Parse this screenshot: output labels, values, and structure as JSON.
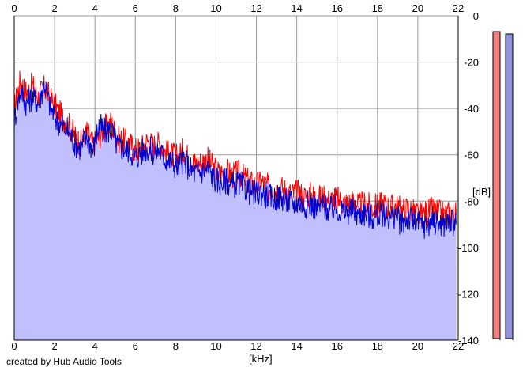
{
  "credit": "created by Hub Audio Tools",
  "meter_labels": {
    "left": "",
    "right": ""
  },
  "chart_data": {
    "type": "area",
    "title": "",
    "xlabel": "[kHz]",
    "ylabel": "[dB]",
    "x_ticks": [
      "0",
      "2",
      "4",
      "6",
      "8",
      "10",
      "12",
      "14",
      "16",
      "18",
      "20",
      "22"
    ],
    "y_ticks": [
      "0",
      "-20",
      "-40",
      "-60",
      "-80",
      "-100",
      "-120",
      "-140"
    ],
    "xlim": [
      0,
      22
    ],
    "ylim": [
      -140,
      0
    ],
    "grid": true,
    "colors": {
      "red_series": "#ff0000",
      "blue_series": "#0000cc",
      "fill": "#c0c0ff",
      "grid": "#9a9a9a",
      "axis": "#000000",
      "meter_red": "#f28080",
      "meter_blue": "#9090e0"
    },
    "series": [
      {
        "color": "red",
        "x": [
          0.0,
          0.3,
          0.6,
          0.9,
          1.2,
          1.5,
          1.8,
          2.1,
          2.4,
          2.7,
          3.0,
          3.3,
          3.6,
          3.9,
          4.2,
          4.5,
          4.8,
          5.1,
          5.4,
          5.7,
          6.0,
          6.3,
          6.6,
          6.9,
          7.2,
          7.5,
          7.8,
          8.1,
          8.4,
          8.7,
          9.0,
          9.3,
          9.6,
          9.9,
          10.2,
          10.5,
          10.8,
          11.1,
          11.4,
          11.7,
          12.0,
          12.3,
          12.6,
          12.9,
          13.2,
          13.5,
          13.8,
          14.1,
          14.4,
          14.7,
          15.0,
          15.3,
          15.6,
          15.9,
          16.2,
          16.5,
          16.8,
          17.1,
          17.4,
          17.7,
          18.0,
          18.3,
          18.6,
          18.9,
          19.2,
          19.5,
          19.8,
          20.1,
          20.4,
          20.7,
          21.0,
          21.3,
          21.6,
          21.9
        ],
        "y": [
          -40,
          -28,
          -33,
          -30,
          -35,
          -31,
          -36,
          -40,
          -44,
          -47,
          -52,
          -55,
          -50,
          -56,
          -52,
          -48,
          -46,
          -53,
          -54,
          -55,
          -58,
          -57,
          -54,
          -56,
          -55,
          -59,
          -60,
          -61,
          -58,
          -62,
          -64,
          -63,
          -62,
          -66,
          -68,
          -67,
          -69,
          -68,
          -70,
          -72,
          -73,
          -72,
          -74,
          -75,
          -74,
          -76,
          -77,
          -76,
          -78,
          -77,
          -79,
          -78,
          -80,
          -79,
          -80,
          -81,
          -80,
          -82,
          -81,
          -83,
          -82,
          -81,
          -83,
          -82,
          -84,
          -83,
          -85,
          -86,
          -85,
          -84,
          -85,
          -86,
          -85,
          -86
        ]
      },
      {
        "color": "blue",
        "x": [
          0.0,
          0.3,
          0.6,
          0.9,
          1.2,
          1.5,
          1.8,
          2.1,
          2.4,
          2.7,
          3.0,
          3.3,
          3.6,
          3.9,
          4.2,
          4.5,
          4.8,
          5.1,
          5.4,
          5.7,
          6.0,
          6.3,
          6.6,
          6.9,
          7.2,
          7.5,
          7.8,
          8.1,
          8.4,
          8.7,
          9.0,
          9.3,
          9.6,
          9.9,
          10.2,
          10.5,
          10.8,
          11.1,
          11.4,
          11.7,
          12.0,
          12.3,
          12.6,
          12.9,
          13.2,
          13.5,
          13.8,
          14.1,
          14.4,
          14.7,
          15.0,
          15.3,
          15.6,
          15.9,
          16.2,
          16.5,
          16.8,
          17.1,
          17.4,
          17.7,
          18.0,
          18.3,
          18.6,
          18.9,
          19.2,
          19.5,
          19.8,
          20.1,
          20.4,
          20.7,
          21.0,
          21.3,
          21.6,
          21.9
        ],
        "y": [
          -45,
          -32,
          -38,
          -35,
          -38,
          -29,
          -40,
          -45,
          -48,
          -50,
          -55,
          -57,
          -52,
          -58,
          -47,
          -50,
          -49,
          -56,
          -57,
          -58,
          -61,
          -59,
          -57,
          -59,
          -58,
          -62,
          -63,
          -65,
          -62,
          -66,
          -68,
          -67,
          -66,
          -70,
          -72,
          -71,
          -73,
          -72,
          -74,
          -76,
          -77,
          -76,
          -78,
          -79,
          -78,
          -80,
          -81,
          -80,
          -82,
          -81,
          -83,
          -82,
          -84,
          -83,
          -84,
          -85,
          -84,
          -86,
          -85,
          -87,
          -86,
          -85,
          -87,
          -86,
          -90,
          -87,
          -89,
          -90,
          -91,
          -88,
          -89,
          -90,
          -89,
          -90
        ]
      }
    ]
  }
}
